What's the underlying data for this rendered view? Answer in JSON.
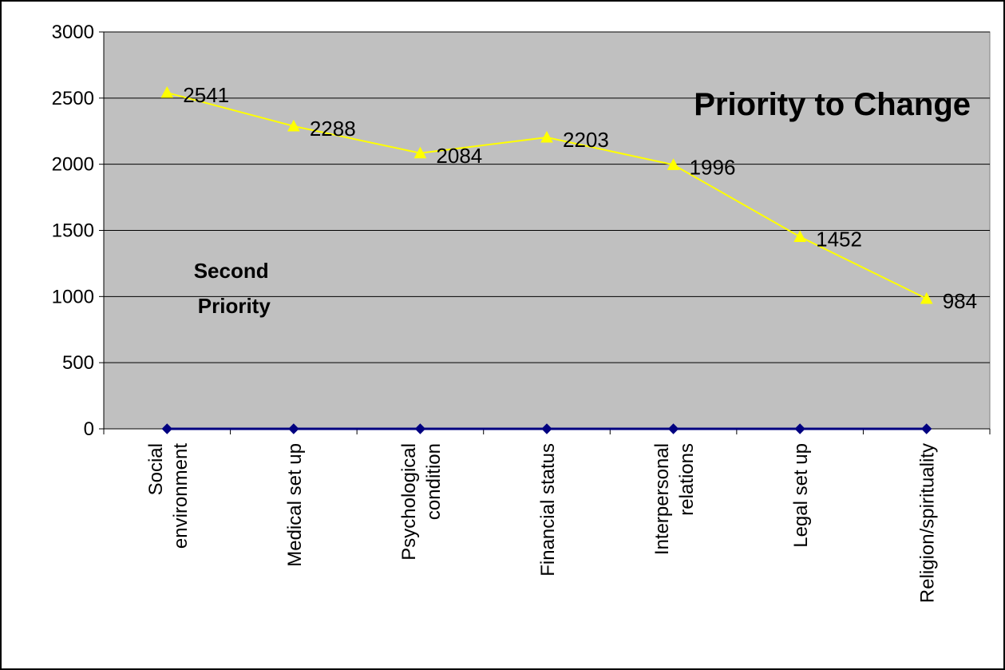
{
  "chart_data": {
    "type": "line",
    "title": "Priority to Change",
    "annotation": [
      "Second",
      "Priority"
    ],
    "categories": [
      [
        "Social",
        "environment"
      ],
      [
        "Medical set up"
      ],
      [
        "Psychological",
        "condition"
      ],
      [
        "Financial status"
      ],
      [
        "Interpersonal",
        "relations"
      ],
      [
        "Legal set up"
      ],
      [
        "Religion/spirituality"
      ]
    ],
    "series": [
      {
        "values": [
          2541,
          2288,
          2084,
          2203,
          1996,
          1452,
          984
        ],
        "color": "#FFFF00",
        "marker": "triangle"
      },
      {
        "values": [
          0,
          0,
          0,
          0,
          0,
          0,
          0
        ],
        "color": "#000080",
        "marker": "diamond"
      }
    ],
    "ylim": [
      0,
      3000
    ],
    "yticks": [
      0,
      500,
      1000,
      1500,
      2000,
      2500,
      3000
    ],
    "grid": true,
    "plot_background": "#C0C0C0",
    "xlabel": "",
    "ylabel": ""
  }
}
